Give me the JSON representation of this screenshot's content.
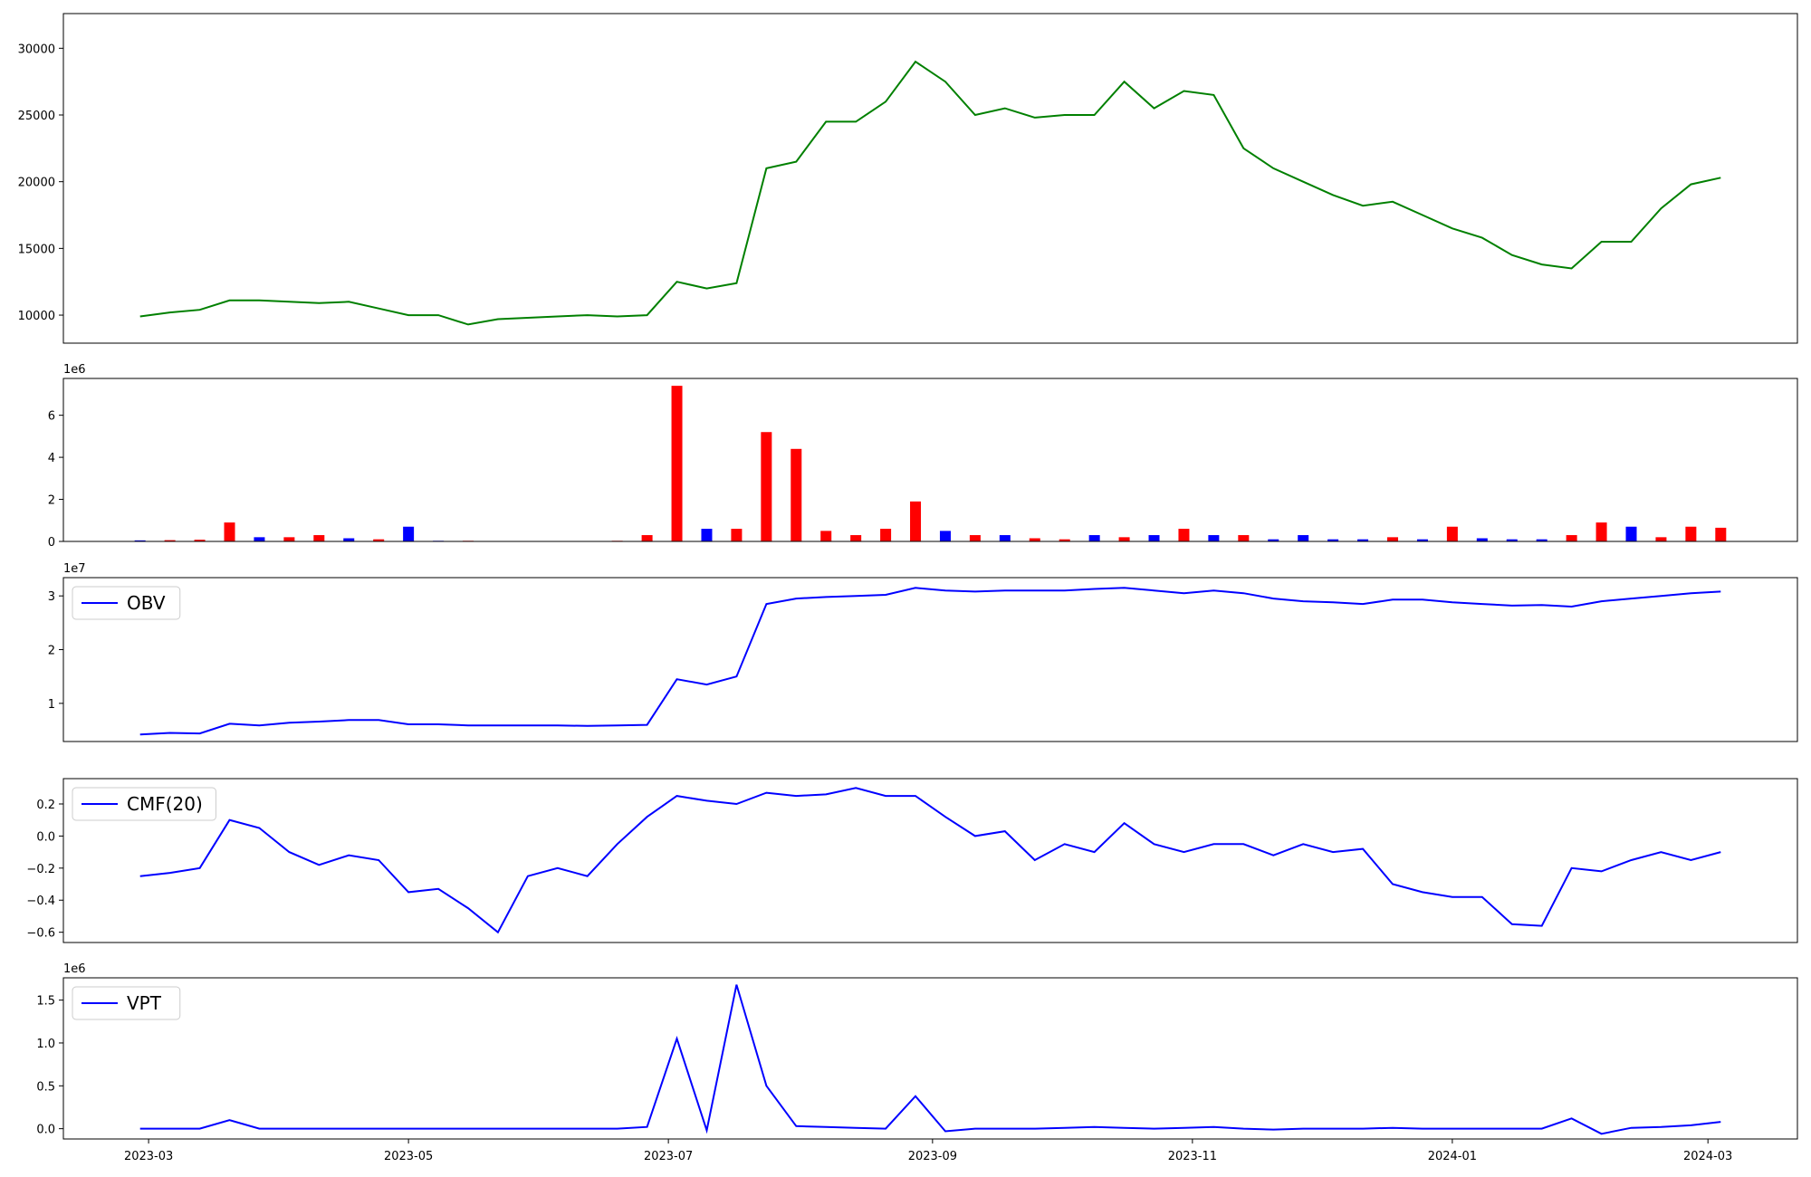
{
  "chart_data": [
    {
      "type": "line",
      "xlim": [
        "2023-02-09",
        "2024-03-22"
      ],
      "ylim": [
        7900,
        32600
      ],
      "yticks": [
        10000,
        15000,
        20000,
        25000,
        30000
      ],
      "x": [
        "2023-02-27",
        "2023-03-06",
        "2023-03-13",
        "2023-03-20",
        "2023-03-27",
        "2023-04-03",
        "2023-04-10",
        "2023-04-17",
        "2023-04-24",
        "2023-05-01",
        "2023-05-08",
        "2023-05-15",
        "2023-05-22",
        "2023-05-29",
        "2023-06-05",
        "2023-06-12",
        "2023-06-19",
        "2023-06-26",
        "2023-07-03",
        "2023-07-10",
        "2023-07-17",
        "2023-07-24",
        "2023-07-31",
        "2023-08-07",
        "2023-08-14",
        "2023-08-21",
        "2023-08-28",
        "2023-09-04",
        "2023-09-11",
        "2023-09-18",
        "2023-09-25",
        "2023-10-02",
        "2023-10-09",
        "2023-10-16",
        "2023-10-23",
        "2023-10-30",
        "2023-11-06",
        "2023-11-13",
        "2023-11-20",
        "2023-11-27",
        "2023-12-04",
        "2023-12-11",
        "2023-12-18",
        "2023-12-25",
        "2024-01-01",
        "2024-01-08",
        "2024-01-15",
        "2024-01-22",
        "2024-01-29",
        "2024-02-05",
        "2024-02-12",
        "2024-02-19",
        "2024-02-26",
        "2024-03-04"
      ],
      "series": [
        {
          "color": "green",
          "values": [
            9900,
            10200,
            10400,
            11100,
            11100,
            11000,
            10900,
            11000,
            10500,
            10000,
            10000,
            9300,
            9700,
            9800,
            9900,
            10000,
            9900,
            10000,
            12500,
            12000,
            12400,
            21000,
            21500,
            24500,
            24500,
            26000,
            29000,
            27500,
            25000,
            25500,
            24800,
            25000,
            25000,
            27500,
            25500,
            26800,
            26500,
            22500,
            21000,
            20000,
            19000,
            18200,
            18500,
            17500,
            16500,
            15800,
            14500,
            13800,
            13500,
            15500,
            15500,
            18000,
            19800,
            20300
          ]
        }
      ]
    },
    {
      "type": "bar",
      "xlim": [
        "2023-02-09",
        "2024-03-22"
      ],
      "ylim": [
        0,
        7750000
      ],
      "y_offset_label": "1e6",
      "yticks": [
        {
          "value": 0,
          "label": "0"
        },
        {
          "value": 2000000,
          "label": "2"
        },
        {
          "value": 4000000,
          "label": "4"
        },
        {
          "value": 6000000,
          "label": "6"
        }
      ],
      "x": [
        "2023-02-27",
        "2023-03-06",
        "2023-03-13",
        "2023-03-20",
        "2023-03-27",
        "2023-04-03",
        "2023-04-10",
        "2023-04-17",
        "2023-04-24",
        "2023-05-01",
        "2023-05-08",
        "2023-05-15",
        "2023-05-22",
        "2023-05-29",
        "2023-06-05",
        "2023-06-12",
        "2023-06-19",
        "2023-06-26",
        "2023-07-03",
        "2023-07-10",
        "2023-07-17",
        "2023-07-24",
        "2023-07-31",
        "2023-08-07",
        "2023-08-14",
        "2023-08-21",
        "2023-08-28",
        "2023-09-04",
        "2023-09-11",
        "2023-09-18",
        "2023-09-25",
        "2023-10-02",
        "2023-10-09",
        "2023-10-16",
        "2023-10-23",
        "2023-10-30",
        "2023-11-06",
        "2023-11-13",
        "2023-11-20",
        "2023-11-27",
        "2023-12-04",
        "2023-12-11",
        "2023-12-18",
        "2023-12-25",
        "2024-01-01",
        "2024-01-08",
        "2024-01-15",
        "2024-01-22",
        "2024-01-29",
        "2024-02-05",
        "2024-02-12",
        "2024-02-19",
        "2024-02-26",
        "2024-03-04"
      ],
      "values": [
        50000,
        60000,
        80000,
        900000,
        200000,
        200000,
        300000,
        150000,
        100000,
        700000,
        30000,
        30000,
        20000,
        10000,
        10000,
        20000,
        30000,
        300000,
        7400000,
        600000,
        600000,
        5200000,
        4400000,
        500000,
        300000,
        600000,
        1900000,
        500000,
        300000,
        300000,
        150000,
        100000,
        300000,
        200000,
        300000,
        600000,
        300000,
        300000,
        100000,
        300000,
        100000,
        100000,
        200000,
        100000,
        700000,
        150000,
        100000,
        100000,
        300000,
        900000,
        700000,
        200000,
        700000,
        650000
      ],
      "bar_colors": [
        "blue",
        "red",
        "red",
        "red",
        "blue",
        "red",
        "red",
        "blue",
        "red",
        "blue",
        "blue",
        "red",
        "red",
        "red",
        "red",
        "red",
        "red",
        "red",
        "red",
        "blue",
        "red",
        "red",
        "red",
        "red",
        "red",
        "red",
        "red",
        "blue",
        "red",
        "blue",
        "red",
        "red",
        "blue",
        "red",
        "blue",
        "red",
        "blue",
        "red",
        "blue",
        "blue",
        "blue",
        "blue",
        "red",
        "blue",
        "red",
        "blue",
        "blue",
        "blue",
        "red",
        "red",
        "blue",
        "red",
        "red",
        "red"
      ]
    },
    {
      "type": "line",
      "xlim": [
        "2023-02-09",
        "2024-03-22"
      ],
      "ylim": [
        2900000,
        33400000
      ],
      "y_offset_label": "1e7",
      "legend": "upper left",
      "yticks": [
        {
          "value": 10000000,
          "label": "1"
        },
        {
          "value": 20000000,
          "label": "2"
        },
        {
          "value": 30000000,
          "label": "3"
        }
      ],
      "x": [
        "2023-02-27",
        "2023-03-06",
        "2023-03-13",
        "2023-03-20",
        "2023-03-27",
        "2023-04-03",
        "2023-04-10",
        "2023-04-17",
        "2023-04-24",
        "2023-05-01",
        "2023-05-08",
        "2023-05-15",
        "2023-05-22",
        "2023-05-29",
        "2023-06-05",
        "2023-06-12",
        "2023-06-19",
        "2023-06-26",
        "2023-07-03",
        "2023-07-10",
        "2023-07-17",
        "2023-07-24",
        "2023-07-31",
        "2023-08-07",
        "2023-08-14",
        "2023-08-21",
        "2023-08-28",
        "2023-09-04",
        "2023-09-11",
        "2023-09-18",
        "2023-09-25",
        "2023-10-02",
        "2023-10-09",
        "2023-10-16",
        "2023-10-23",
        "2023-10-30",
        "2023-11-06",
        "2023-11-13",
        "2023-11-20",
        "2023-11-27",
        "2023-12-04",
        "2023-12-11",
        "2023-12-18",
        "2023-12-25",
        "2024-01-01",
        "2024-01-08",
        "2024-01-15",
        "2024-01-22",
        "2024-01-29",
        "2024-02-05",
        "2024-02-12",
        "2024-02-19",
        "2024-02-26",
        "2024-03-04"
      ],
      "series": [
        {
          "name": "OBV",
          "color": "blue",
          "values": [
            4200000,
            4500000,
            4400000,
            6200000,
            5900000,
            6400000,
            6600000,
            6900000,
            6900000,
            6100000,
            6100000,
            5900000,
            5900000,
            5900000,
            5900000,
            5800000,
            5900000,
            6000000,
            14500000,
            13500000,
            15000000,
            28500000,
            29500000,
            29800000,
            30000000,
            30200000,
            31500000,
            31000000,
            30800000,
            31000000,
            31000000,
            31000000,
            31300000,
            31500000,
            31000000,
            30500000,
            31000000,
            30500000,
            29500000,
            29000000,
            28800000,
            28500000,
            29300000,
            29300000,
            28800000,
            28500000,
            28200000,
            28300000,
            28000000,
            29000000,
            29500000,
            30000000,
            30500000,
            30800000
          ]
        }
      ]
    },
    {
      "type": "line",
      "xlim": [
        "2023-02-09",
        "2024-03-22"
      ],
      "ylim": [
        -0.664,
        0.358
      ],
      "legend": "upper left",
      "yticks": [
        {
          "value": -0.6,
          "label": "−0.6"
        },
        {
          "value": -0.4,
          "label": "−0.4"
        },
        {
          "value": -0.2,
          "label": "−0.2"
        },
        {
          "value": 0,
          "label": "0.0"
        },
        {
          "value": 0.2,
          "label": "0.2"
        }
      ],
      "x": [
        "2023-02-27",
        "2023-03-06",
        "2023-03-13",
        "2023-03-20",
        "2023-03-27",
        "2023-04-03",
        "2023-04-10",
        "2023-04-17",
        "2023-04-24",
        "2023-05-01",
        "2023-05-08",
        "2023-05-15",
        "2023-05-22",
        "2023-05-29",
        "2023-06-05",
        "2023-06-12",
        "2023-06-19",
        "2023-06-26",
        "2023-07-03",
        "2023-07-10",
        "2023-07-17",
        "2023-07-24",
        "2023-07-31",
        "2023-08-07",
        "2023-08-14",
        "2023-08-21",
        "2023-08-28",
        "2023-09-04",
        "2023-09-11",
        "2023-09-18",
        "2023-09-25",
        "2023-10-02",
        "2023-10-09",
        "2023-10-16",
        "2023-10-23",
        "2023-10-30",
        "2023-11-06",
        "2023-11-13",
        "2023-11-20",
        "2023-11-27",
        "2023-12-04",
        "2023-12-11",
        "2023-12-18",
        "2023-12-25",
        "2024-01-01",
        "2024-01-08",
        "2024-01-15",
        "2024-01-22",
        "2024-01-29",
        "2024-02-05",
        "2024-02-12",
        "2024-02-19",
        "2024-02-26",
        "2024-03-04"
      ],
      "series": [
        {
          "name": "CMF(20)",
          "color": "blue",
          "values": [
            -0.25,
            -0.23,
            -0.2,
            0.1,
            0.05,
            -0.1,
            -0.18,
            -0.12,
            -0.15,
            -0.35,
            -0.33,
            -0.45,
            -0.6,
            -0.25,
            -0.2,
            -0.25,
            -0.05,
            0.12,
            0.25,
            0.22,
            0.2,
            0.27,
            0.25,
            0.26,
            0.3,
            0.25,
            0.25,
            0.12,
            0,
            0.03,
            -0.15,
            -0.05,
            -0.1,
            0.08,
            -0.05,
            -0.1,
            -0.05,
            -0.05,
            -0.12,
            -0.05,
            -0.1,
            -0.08,
            -0.3,
            -0.35,
            -0.38,
            -0.38,
            -0.55,
            -0.56,
            -0.2,
            -0.22,
            -0.15,
            -0.1,
            -0.15,
            -0.1
          ]
        }
      ]
    },
    {
      "type": "line",
      "xlim": [
        "2023-02-09",
        "2024-03-22"
      ],
      "ylim": [
        -120000,
        1760000
      ],
      "y_offset_label": "1e6",
      "legend": "upper left",
      "yticks": [
        {
          "value": 0,
          "label": "0.0"
        },
        {
          "value": 500000,
          "label": "0.5"
        },
        {
          "value": 1000000,
          "label": "1.0"
        },
        {
          "value": 1500000,
          "label": "1.5"
        }
      ],
      "xticks": [
        {
          "value": "2023-03-01",
          "label": "2023-03"
        },
        {
          "value": "2023-05-01",
          "label": "2023-05"
        },
        {
          "value": "2023-07-01",
          "label": "2023-07"
        },
        {
          "value": "2023-09-01",
          "label": "2023-09"
        },
        {
          "value": "2023-11-01",
          "label": "2023-11"
        },
        {
          "value": "2024-01-01",
          "label": "2024-01"
        },
        {
          "value": "2024-03-01",
          "label": "2024-03"
        }
      ],
      "x": [
        "2023-02-27",
        "2023-03-06",
        "2023-03-13",
        "2023-03-20",
        "2023-03-27",
        "2023-04-03",
        "2023-04-10",
        "2023-04-17",
        "2023-04-24",
        "2023-05-01",
        "2023-05-08",
        "2023-05-15",
        "2023-05-22",
        "2023-05-29",
        "2023-06-05",
        "2023-06-12",
        "2023-06-19",
        "2023-06-26",
        "2023-07-03",
        "2023-07-10",
        "2023-07-17",
        "2023-07-24",
        "2023-07-31",
        "2023-08-07",
        "2023-08-14",
        "2023-08-21",
        "2023-08-28",
        "2023-09-04",
        "2023-09-11",
        "2023-09-18",
        "2023-09-25",
        "2023-10-02",
        "2023-10-09",
        "2023-10-16",
        "2023-10-23",
        "2023-10-30",
        "2023-11-06",
        "2023-11-13",
        "2023-11-20",
        "2023-11-27",
        "2023-12-04",
        "2023-12-11",
        "2023-12-18",
        "2023-12-25",
        "2024-01-01",
        "2024-01-08",
        "2024-01-15",
        "2024-01-22",
        "2024-01-29",
        "2024-02-05",
        "2024-02-12",
        "2024-02-19",
        "2024-02-26",
        "2024-03-04"
      ],
      "series": [
        {
          "name": "VPT",
          "color": "blue",
          "values": [
            0,
            0,
            0,
            100000,
            0,
            0,
            0,
            0,
            0,
            0,
            0,
            0,
            0,
            0,
            0,
            0,
            0,
            20000,
            1050000,
            -20000,
            1680000,
            500000,
            30000,
            20000,
            10000,
            0,
            380000,
            -30000,
            0,
            0,
            0,
            10000,
            20000,
            10000,
            0,
            10000,
            20000,
            0,
            -10000,
            0,
            0,
            0,
            10000,
            0,
            0,
            0,
            0,
            0,
            120000,
            -60000,
            10000,
            20000,
            40000,
            80000
          ]
        }
      ]
    }
  ]
}
